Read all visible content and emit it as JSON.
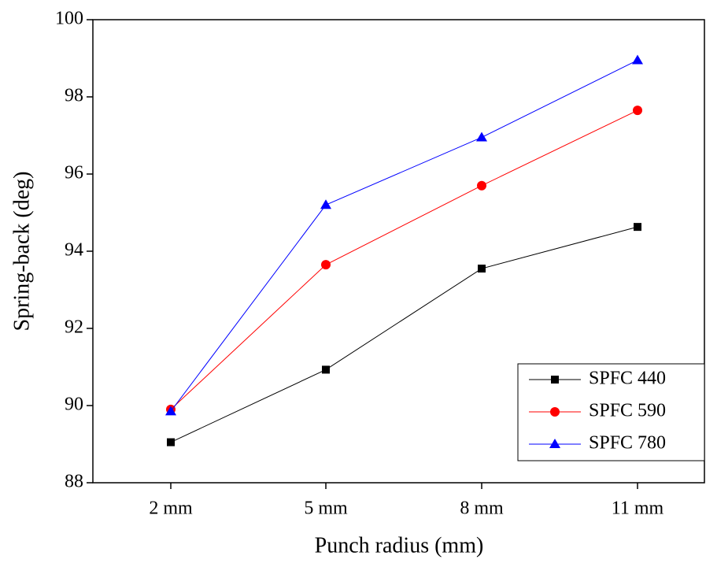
{
  "chart_data": {
    "type": "line",
    "x_label": "Punch radius (mm)",
    "y_label": "Spring-back (deg)",
    "categories": [
      "2 mm",
      "5 mm",
      "8 mm",
      "11 mm"
    ],
    "series": [
      {
        "name": "SPFC 440",
        "color": "#000000",
        "marker": "square",
        "values": [
          89.05,
          90.93,
          93.55,
          94.63
        ]
      },
      {
        "name": "SPFC 590",
        "color": "#ff0000",
        "marker": "circle",
        "values": [
          89.9,
          93.65,
          95.7,
          97.65
        ]
      },
      {
        "name": "SPFC 780",
        "color": "#0000ff",
        "marker": "triangle",
        "values": [
          89.85,
          95.2,
          96.95,
          98.95
        ]
      }
    ],
    "ylim": [
      88,
      100
    ],
    "yticks": [
      88,
      90,
      92,
      94,
      96,
      98,
      100
    ],
    "legend": "lower right"
  }
}
